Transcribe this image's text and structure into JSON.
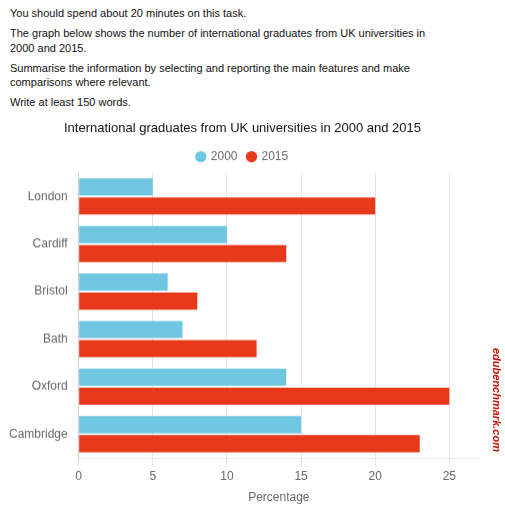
{
  "chart_data": {
    "type": "bar",
    "orientation": "horizontal",
    "title": "International graduates from UK universities in 2000 and 2015",
    "annotations": [
      "You should spend about 20 minutes on this task.",
      "The graph below shows the number of international graduates from UK universities in\n2000 and 2015.",
      "Summarise the information by selecting and reporting the main features and make\ncomparisons where relevant.",
      "Write at least 150 words."
    ],
    "watermark": {
      "text": "edubenchmark.com",
      "color": "#cc1100"
    },
    "categories": [
      "London",
      "Cardiff",
      "Bristol",
      "Bath",
      "Oxford",
      "Cambridge"
    ],
    "series": [
      {
        "name": "2000",
        "color": "#6ec6e0",
        "values": [
          5,
          10,
          6,
          7,
          14,
          15
        ]
      },
      {
        "name": "2015",
        "color": "#e8381a",
        "values": [
          20,
          14,
          8,
          12,
          25,
          23
        ]
      }
    ],
    "xlabel": "Percentage",
    "xlim": [
      0,
      27
    ],
    "xticks": [
      0,
      5,
      10,
      15,
      20,
      25
    ],
    "grid": true,
    "legend": "top"
  }
}
